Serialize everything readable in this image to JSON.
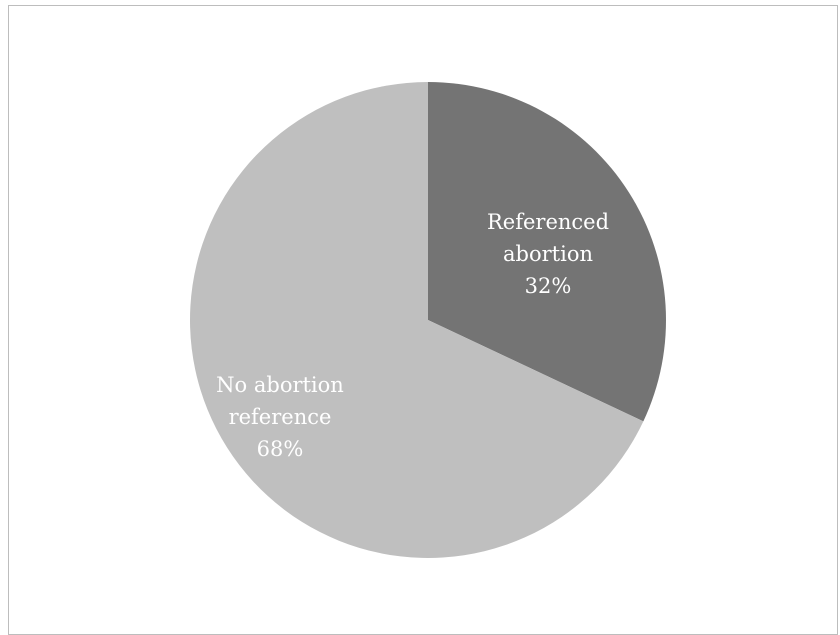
{
  "chart_data": {
    "type": "pie",
    "title": "",
    "slices": [
      {
        "label_lines": [
          "Referenced",
          "abortion"
        ],
        "percent_label": "32%",
        "value": 32,
        "color": "#747474"
      },
      {
        "label_lines": [
          "No abortion",
          "reference"
        ],
        "percent_label": "68%",
        "value": 68,
        "color": "#bfbfbf"
      }
    ],
    "start_angle_deg": 0,
    "direction": "clockwise",
    "legend": "none"
  }
}
